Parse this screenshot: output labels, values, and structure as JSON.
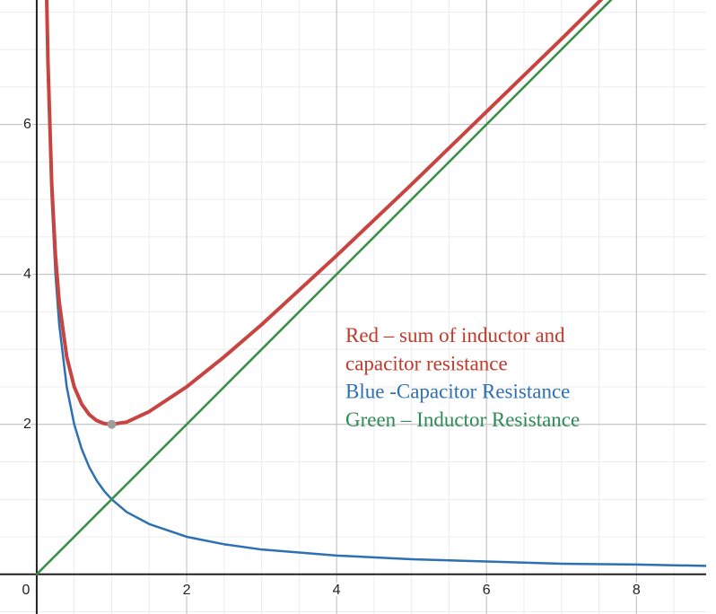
{
  "chart_data": {
    "type": "line",
    "x": [
      0,
      0.13,
      0.15,
      0.2,
      0.25,
      0.3,
      0.4,
      0.5,
      0.6,
      0.7,
      0.8,
      0.9,
      1,
      1.2,
      1.5,
      2,
      2.5,
      3,
      4,
      5,
      6,
      7,
      8,
      9
    ],
    "series": [
      {
        "name": "Capacitor Resistance",
        "color": "#2d70b3",
        "width": 2.5,
        "values": [
          null,
          7.69,
          6.67,
          5,
          4,
          3.33,
          2.5,
          2,
          1.67,
          1.43,
          1.25,
          1.11,
          1,
          0.83,
          0.67,
          0.5,
          0.4,
          0.33,
          0.25,
          0.2,
          0.17,
          0.14,
          0.13,
          0.11
        ]
      },
      {
        "name": "Inductor Resistance",
        "color": "#388c46",
        "width": 2.5,
        "values": [
          0,
          0.13,
          0.15,
          0.2,
          0.25,
          0.3,
          0.4,
          0.5,
          0.6,
          0.7,
          0.8,
          0.9,
          1,
          1.2,
          1.5,
          2,
          2.5,
          3,
          4,
          5,
          6,
          7,
          8,
          9
        ]
      },
      {
        "name": "sum of inductor and capacitor resistance",
        "color": "#c74440",
        "width": 4,
        "values": [
          null,
          7.82,
          6.82,
          5.2,
          4.25,
          3.63,
          2.9,
          2.5,
          2.27,
          2.13,
          2.05,
          2.01,
          2,
          2.03,
          2.17,
          2.5,
          2.9,
          3.33,
          4.25,
          5.2,
          6.17,
          7.14,
          8.13,
          9.11
        ]
      }
    ],
    "highlight_point": {
      "x": 1,
      "y": 2,
      "color": "#9e9e9e"
    },
    "xlim": [
      -0.49,
      8.93
    ],
    "ylim": [
      -0.53,
      7.66
    ],
    "xticks": [
      {
        "value": 0,
        "label": "0"
      },
      2,
      4,
      6,
      8
    ],
    "yticks": [
      2,
      4,
      6
    ],
    "grid": true,
    "minor_grid_step": 0.5,
    "annotations": [
      {
        "text": "Red – sum of inductor and",
        "color": "#c0392b"
      },
      {
        "text": "capacitor resistance",
        "color": "#c0392b"
      },
      {
        "text": "Blue -Capacitor Resistance",
        "color": "#2d70b3"
      },
      {
        "text": "Green – Inductor Resistance",
        "color": "#2e8b57"
      }
    ]
  }
}
